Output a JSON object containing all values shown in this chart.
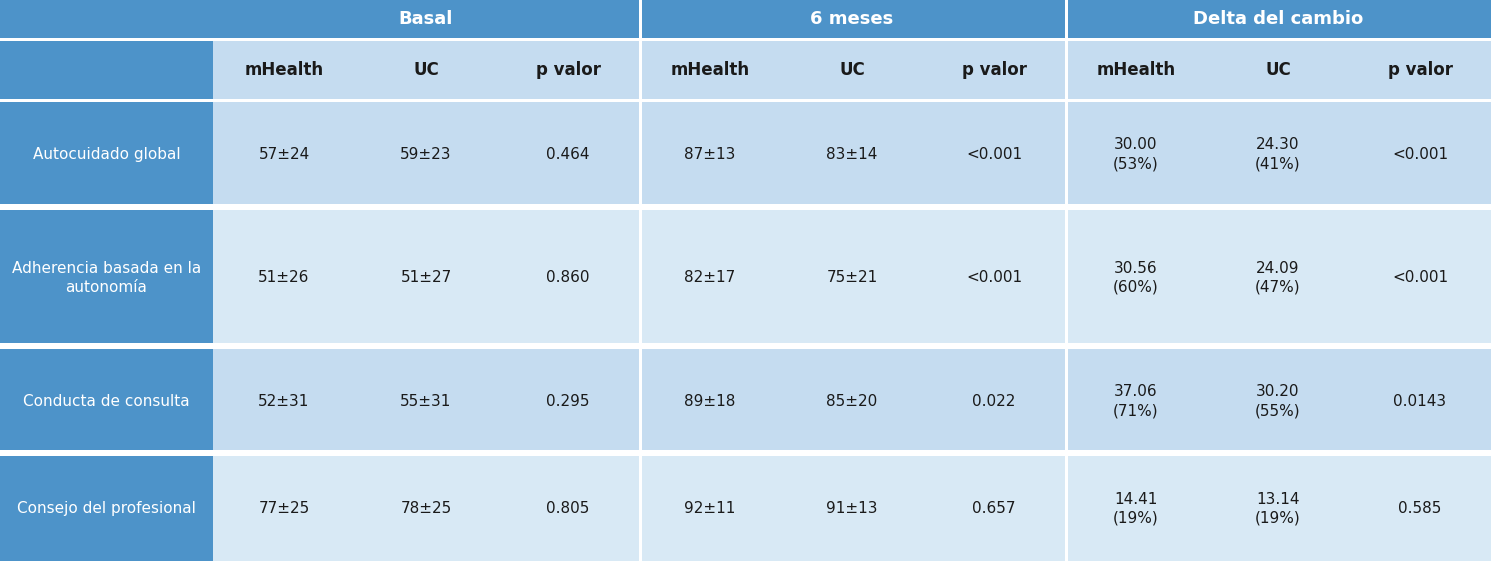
{
  "col_headers": [
    "mHealth",
    "UC",
    "p valor",
    "mHealth",
    "UC",
    "p valor",
    "mHealth",
    "UC",
    "p valor"
  ],
  "row_labels": [
    "Autocuidado global",
    "Adherencia basada en la\nautonomía",
    "Conducta de consulta",
    "Consejo del profesional"
  ],
  "data": [
    [
      "57±24",
      "59±23",
      "0.464",
      "87±13",
      "83±14",
      "<0.001",
      "30.00\n(53%)",
      "24.30\n(41%)",
      "<0.001"
    ],
    [
      "51±26",
      "51±27",
      "0.860",
      "82±17",
      "75±21",
      "<0.001",
      "30.56\n(60%)",
      "24.09\n(47%)",
      "<0.001"
    ],
    [
      "52±31",
      "55±31",
      "0.295",
      "89±18",
      "85±20",
      "0.022",
      "37.06\n(71%)",
      "30.20\n(55%)",
      "0.0143"
    ],
    [
      "77±25",
      "78±25",
      "0.805",
      "92±11",
      "91±13",
      "0.657",
      "14.41\n(19%)",
      "13.14\n(19%)",
      "0.585"
    ]
  ],
  "color_group_header": "#4D93C9",
  "color_col_header_bg": "#C5DCF0",
  "color_left_col": "#4D93C9",
  "color_data_row_odd": "#C5DCF0",
  "color_data_row_even": "#D8E9F5",
  "color_divider": "#FFFFFF",
  "color_text_header_white": "#FFFFFF",
  "color_text_dark": "#1A1A1A",
  "font_size_group": 13,
  "font_size_col_header": 12,
  "font_size_row_label": 11,
  "font_size_data": 11
}
